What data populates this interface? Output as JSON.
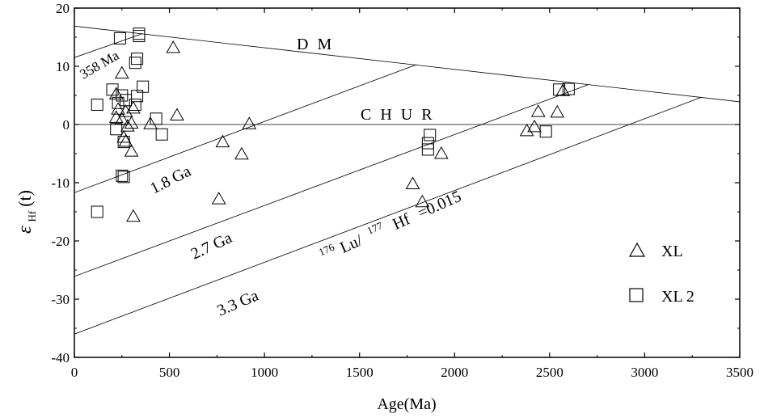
{
  "chart_data": {
    "type": "scatter",
    "title": "",
    "xlabel": "Age(Ma)",
    "ylabel": {
      "main": "ε",
      "sub": "Hf",
      "suffix": "(t)"
    },
    "xlim": [
      0,
      3500
    ],
    "ylim": [
      -40,
      20
    ],
    "xticks": [
      0,
      500,
      1000,
      1500,
      2000,
      2500,
      3000,
      3500
    ],
    "yticks": [
      -40,
      -30,
      -20,
      -10,
      0,
      10,
      20
    ],
    "grid": false,
    "legend_position": "bottom-right",
    "series": [
      {
        "name": "XL",
        "marker": "triangle",
        "points": [
          [
            520,
            13.2
          ],
          [
            250,
            8.8
          ],
          [
            220,
            5.2
          ],
          [
            230,
            2.6
          ],
          [
            270,
            2.2
          ],
          [
            310,
            2.8
          ],
          [
            220,
            1.2
          ],
          [
            250,
            0.9
          ],
          [
            280,
            -0.3
          ],
          [
            300,
            0.2
          ],
          [
            260,
            -2.2
          ],
          [
            270,
            -2.9
          ],
          [
            300,
            -4.6
          ],
          [
            310,
            -15.8
          ],
          [
            400,
            0.1
          ],
          [
            540,
            1.6
          ],
          [
            780,
            -3.0
          ],
          [
            880,
            -5.1
          ],
          [
            920,
            0.1
          ],
          [
            760,
            -12.8
          ],
          [
            1780,
            -10.2
          ],
          [
            1830,
            -13.3
          ],
          [
            1930,
            -5.0
          ],
          [
            2380,
            -1.1
          ],
          [
            2420,
            -0.4
          ],
          [
            2440,
            2.2
          ],
          [
            2540,
            2.1
          ],
          [
            2570,
            5.8
          ]
        ]
      },
      {
        "name": "XL 2",
        "marker": "square",
        "points": [
          [
            240,
            14.8
          ],
          [
            340,
            15.2
          ],
          [
            340,
            15.6
          ],
          [
            320,
            10.6
          ],
          [
            330,
            11.3
          ],
          [
            360,
            6.5
          ],
          [
            200,
            6.0
          ],
          [
            250,
            5.0
          ],
          [
            330,
            4.9
          ],
          [
            120,
            3.4
          ],
          [
            230,
            3.7
          ],
          [
            270,
            4.2
          ],
          [
            320,
            3.4
          ],
          [
            220,
            -0.8
          ],
          [
            260,
            -3.0
          ],
          [
            430,
            1.0
          ],
          [
            460,
            -1.7
          ],
          [
            250,
            -8.8
          ],
          [
            260,
            -9.0
          ],
          [
            120,
            -15.0
          ],
          [
            1860,
            -4.3
          ],
          [
            1860,
            -3.2
          ],
          [
            1870,
            -1.8
          ],
          [
            2550,
            6.0
          ],
          [
            2600,
            6.1
          ],
          [
            2480,
            -1.2
          ]
        ]
      }
    ],
    "reference_lines": [
      {
        "id": "dm",
        "label": "DM",
        "from": [
          0,
          16.9
        ],
        "to": [
          3500,
          3.9
        ]
      },
      {
        "id": "chur",
        "label": "CHUR",
        "from": [
          0,
          0
        ],
        "to": [
          3500,
          0
        ]
      },
      {
        "id": "358ma",
        "label": "358 Ma",
        "from": [
          0,
          11.5
        ],
        "to": [
          358,
          15.6
        ]
      },
      {
        "id": "1.8ga",
        "label": "1.8 Ga",
        "from": [
          0,
          -11.7
        ],
        "to": [
          1800,
          10.3
        ]
      },
      {
        "id": "2.7ga",
        "label": "2.7 Ga",
        "from": [
          0,
          -26.1
        ],
        "to": [
          2700,
          6.8
        ]
      },
      {
        "id": "3.3ga",
        "label": "3.3 Ga",
        "from": [
          0,
          -36.0
        ],
        "to": [
          3300,
          4.7
        ]
      }
    ],
    "annotations": {
      "dm": "D M",
      "chur": "C H U R",
      "ma358": "358 Ma",
      "ga18": "1.8 Ga",
      "ga27": "2.7 Ga",
      "ga33": "3.3 Ga",
      "ratio": {
        "sup1": "176",
        "lu": "Lu/",
        "sup2": "177",
        "hf": "Hf",
        "value": "=0.015"
      }
    }
  }
}
